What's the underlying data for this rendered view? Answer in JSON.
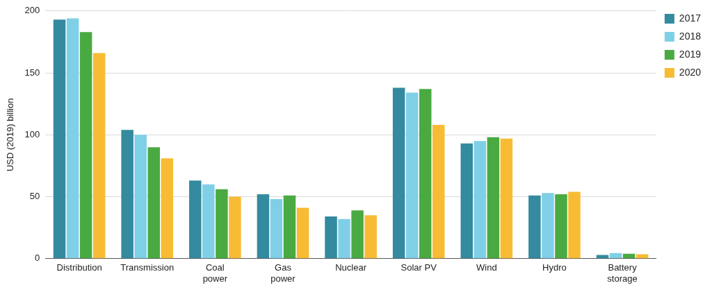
{
  "chart_data": {
    "type": "bar",
    "y_label": "USD (2019) billion",
    "categories": [
      "Distribution",
      "Transmission",
      "Coal\npower",
      "Gas\npower",
      "Nuclear",
      "Solar PV",
      "Wind",
      "Hydro",
      "Battery\nstorage"
    ],
    "series": [
      {
        "name": "2017",
        "color": "#348a9e",
        "values": [
          193,
          104,
          63,
          52,
          34,
          138,
          93,
          51,
          3
        ]
      },
      {
        "name": "2018",
        "color": "#7fd0e6",
        "values": [
          194,
          100,
          60,
          48,
          32,
          134,
          95,
          53,
          4.5
        ]
      },
      {
        "name": "2019",
        "color": "#4aaa42",
        "values": [
          183,
          90,
          56,
          51,
          39,
          137,
          98,
          52,
          4
        ]
      },
      {
        "name": "2020",
        "color": "#f7bc34",
        "values": [
          166,
          81,
          50,
          41,
          35,
          108,
          97,
          54,
          3.5
        ]
      }
    ],
    "ylim": [
      0,
      200
    ],
    "yticks": [
      0,
      50,
      100,
      150,
      200
    ],
    "grid": true,
    "legend": "right"
  }
}
